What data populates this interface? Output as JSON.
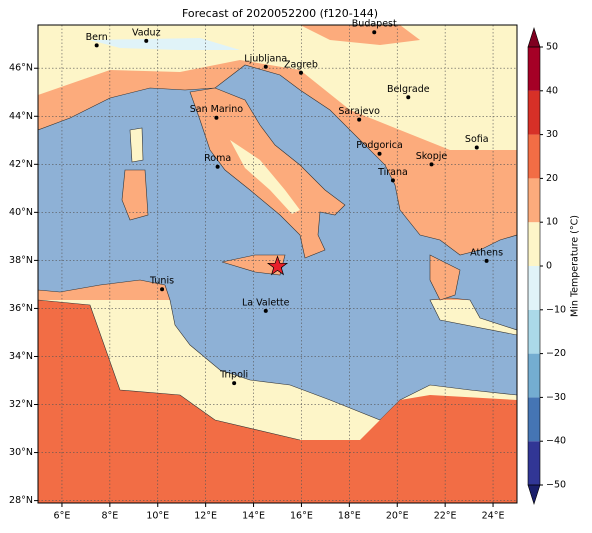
{
  "chart_data": {
    "type": "map",
    "title": "Forecast of 2020052200 (f120-144)",
    "xlim": [
      5,
      25
    ],
    "ylim": [
      27.9,
      47.8
    ],
    "xticks": [
      {
        "value": 6,
        "label": "6°E"
      },
      {
        "value": 8,
        "label": "8°E"
      },
      {
        "value": 10,
        "label": "10°E"
      },
      {
        "value": 12,
        "label": "12°E"
      },
      {
        "value": 14,
        "label": "14°E"
      },
      {
        "value": 16,
        "label": "16°E"
      },
      {
        "value": 18,
        "label": "18°E"
      },
      {
        "value": 20,
        "label": "20°E"
      },
      {
        "value": 22,
        "label": "22°E"
      },
      {
        "value": 24,
        "label": "24°E"
      }
    ],
    "yticks": [
      {
        "value": 28,
        "label": "28°N"
      },
      {
        "value": 30,
        "label": "30°N"
      },
      {
        "value": 32,
        "label": "32°N"
      },
      {
        "value": 34,
        "label": "34°N"
      },
      {
        "value": 36,
        "label": "36°N"
      },
      {
        "value": 38,
        "label": "38°N"
      },
      {
        "value": 40,
        "label": "40°N"
      },
      {
        "value": 42,
        "label": "42°N"
      },
      {
        "value": 44,
        "label": "44°N"
      },
      {
        "value": 46,
        "label": "46°N"
      }
    ],
    "grid": true,
    "cities": [
      {
        "name": "Bern",
        "lon": 7.45,
        "lat": 46.95
      },
      {
        "name": "Vaduz",
        "lon": 9.52,
        "lat": 47.14
      },
      {
        "name": "Ljubljana",
        "lon": 14.51,
        "lat": 46.06
      },
      {
        "name": "Zagreb",
        "lon": 15.98,
        "lat": 45.81
      },
      {
        "name": "Budapest",
        "lon": 19.04,
        "lat": 47.5
      },
      {
        "name": "Belgrade",
        "lon": 20.46,
        "lat": 44.79
      },
      {
        "name": "Sarajevo",
        "lon": 18.41,
        "lat": 43.86
      },
      {
        "name": "San Marino",
        "lon": 12.45,
        "lat": 43.94
      },
      {
        "name": "Roma",
        "lon": 12.5,
        "lat": 41.9
      },
      {
        "name": "Podgorica",
        "lon": 19.26,
        "lat": 42.44
      },
      {
        "name": "Skopje",
        "lon": 21.43,
        "lat": 42.0
      },
      {
        "name": "Sofia",
        "lon": 23.32,
        "lat": 42.7
      },
      {
        "name": "Tirana",
        "lon": 19.82,
        "lat": 41.33
      },
      {
        "name": "Athens",
        "lon": 23.73,
        "lat": 37.98
      },
      {
        "name": "Tunis",
        "lon": 10.18,
        "lat": 36.8
      },
      {
        "name": "La Valette",
        "lon": 14.51,
        "lat": 35.9
      },
      {
        "name": "Tripoli",
        "lon": 13.19,
        "lat": 32.89
      }
    ],
    "marker": {
      "lon": 15.0,
      "lat": 37.75,
      "color": "#e8202a"
    },
    "colorbar": {
      "label": "Min Temperature (°C)",
      "levels": [
        -50,
        -40,
        -30,
        -20,
        -10,
        0,
        10,
        20,
        30,
        40,
        50
      ],
      "colors": [
        "#313695",
        "#4575b4",
        "#74add1",
        "#abd9e9",
        "#e0f3f8",
        "#fdf5c8",
        "#fcab7c",
        "#f26d45",
        "#d73027",
        "#a50026"
      ],
      "under_color": "#1a1f6b",
      "over_color": "#7f0020",
      "ticks": [
        {
          "value": -50,
          "label": "−50"
        },
        {
          "value": -40,
          "label": "−40"
        },
        {
          "value": -30,
          "label": "−30"
        },
        {
          "value": -20,
          "label": "−20"
        },
        {
          "value": -10,
          "label": "−10"
        },
        0,
        10,
        20,
        30,
        40,
        50
      ]
    }
  }
}
